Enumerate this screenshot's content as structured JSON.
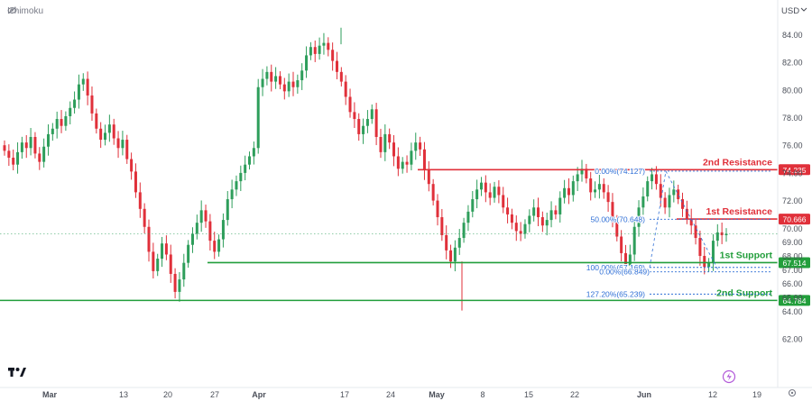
{
  "indicator": {
    "name": "Ichimoku"
  },
  "currency": "USD",
  "colors": {
    "up": "#2e9e5b",
    "down": "#e0303a",
    "resistance": "#e0303a",
    "support": "#229e3b",
    "fib": "#2f6fd6",
    "axis_text": "#4a4e58",
    "current": "#2e9e5b"
  },
  "chart_data": {
    "type": "candlestick",
    "y_ticks": [
      62.0,
      64.0,
      65.0,
      66.0,
      67.0,
      68.0,
      69.0,
      70.0,
      72.0,
      74.0,
      76.0,
      78.0,
      80.0,
      82.0,
      84.0
    ],
    "x_ticks": [
      "Mar",
      "13",
      "20",
      "27",
      "Apr",
      "17",
      "24",
      "May",
      "8",
      "15",
      "22",
      "Jun",
      "12",
      "19"
    ],
    "levels": [
      {
        "label": "2nd Resistance",
        "value": 74.235,
        "value_label": "74.235",
        "kind": "resistance"
      },
      {
        "label": "1st Resistance",
        "value": 70.666,
        "value_label": "70.666",
        "kind": "resistance"
      },
      {
        "label": "1st Support",
        "value": 67.514,
        "value_label": "67.514",
        "kind": "support"
      },
      {
        "label": "2nd Support",
        "value": 64.784,
        "value_label": "64.784",
        "kind": "support"
      }
    ],
    "fib_levels": [
      {
        "text": "0.00%(74.127)",
        "value": 74.127
      },
      {
        "text": "50.00%(70.648)",
        "value": 70.648
      },
      {
        "text": "100.00%(67.169)",
        "value": 67.169
      },
      {
        "text": "0.00%(66.849)",
        "value": 66.849
      },
      {
        "text": "127.20%(65.239)",
        "value": 65.239
      }
    ],
    "current_price": 69.6,
    "closes": [
      75.6,
      75.1,
      74.6,
      75.5,
      76.2,
      75.8,
      76.6,
      75.4,
      74.8,
      75.9,
      76.8,
      77.2,
      77.9,
      77.4,
      78.1,
      78.7,
      79.3,
      80.4,
      80.8,
      79.6,
      78.3,
      77.2,
      76.4,
      76.9,
      77.5,
      76.5,
      75.8,
      76.4,
      75.0,
      74.1,
      72.6,
      71.4,
      70.1,
      68.3,
      66.9,
      67.8,
      68.9,
      68.1,
      66.7,
      65.4,
      66.3,
      67.5,
      68.8,
      69.6,
      70.4,
      71.3,
      70.5,
      69.1,
      68.3,
      69.2,
      70.6,
      72.1,
      72.8,
      73.4,
      74.0,
      74.6,
      75.2,
      75.8,
      80.2,
      80.8,
      81.3,
      80.6,
      81.0,
      80.4,
      79.9,
      80.6,
      80.2,
      80.7,
      81.4,
      82.5,
      83.1,
      82.6,
      83.2,
      83.4,
      82.9,
      82.1,
      81.3,
      80.6,
      79.5,
      78.4,
      77.9,
      76.8,
      77.4,
      77.9,
      78.6,
      76.6,
      75.5,
      76.8,
      76.2,
      75.2,
      74.3,
      74.8,
      74.6,
      75.6,
      76.2,
      75.7,
      74.2,
      73.2,
      72.0,
      70.8,
      69.5,
      68.4,
      67.6,
      68.6,
      69.3,
      70.4,
      71.2,
      72.1,
      72.8,
      73.3,
      72.6,
      72.2,
      73.0,
      72.4,
      71.5,
      71.0,
      70.4,
      69.8,
      69.6,
      70.3,
      70.9,
      71.5,
      70.8,
      70.2,
      70.6,
      71.3,
      71.0,
      72.2,
      72.9,
      72.4,
      73.4,
      73.9,
      74.3,
      73.6,
      72.6,
      72.8,
      73.2,
      72.6,
      71.9,
      70.6,
      69.4,
      68.2,
      67.3,
      68.1,
      70.1,
      71.5,
      72.3,
      73.4,
      73.9,
      73.2,
      72.2,
      71.5,
      72.4,
      72.8,
      72.1,
      71.4,
      70.7,
      70.2,
      69.3,
      68.0,
      67.2,
      67.5,
      69.1,
      69.7,
      69.5,
      69.6
    ]
  }
}
